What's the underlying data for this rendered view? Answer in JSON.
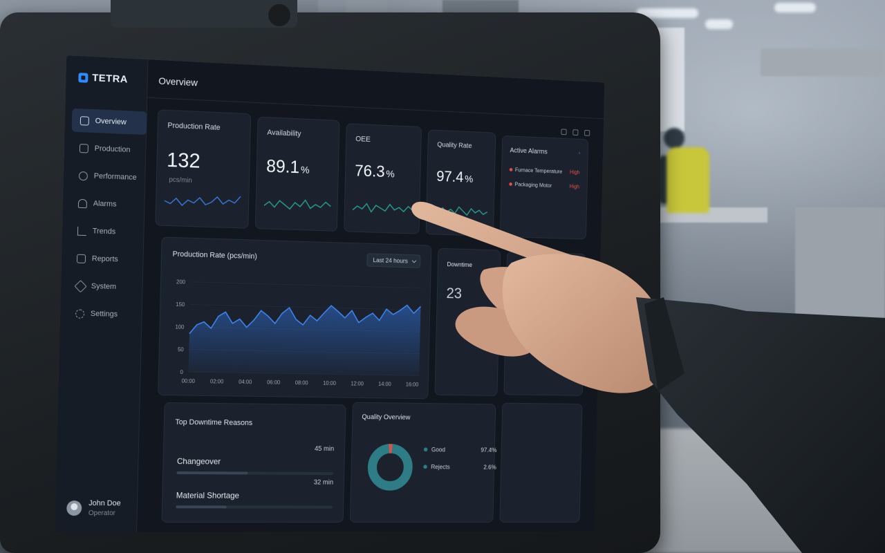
{
  "app": {
    "brand": "TETRA",
    "page_title": "Overview",
    "accent_color": "#2f8cff"
  },
  "sidebar": {
    "items": [
      {
        "label": "Overview",
        "icon": "dashboard-icon",
        "active": true
      },
      {
        "label": "Production",
        "icon": "factory-icon",
        "active": false
      },
      {
        "label": "Performance",
        "icon": "gauge-icon",
        "active": false
      },
      {
        "label": "Alarms",
        "icon": "bell-icon",
        "active": false
      },
      {
        "label": "Trends",
        "icon": "trend-icon",
        "active": false
      },
      {
        "label": "Reports",
        "icon": "report-icon",
        "active": false
      },
      {
        "label": "System",
        "icon": "cube-icon",
        "active": false
      },
      {
        "label": "Settings",
        "icon": "gear-icon",
        "active": false
      }
    ],
    "user": {
      "name": "John Doe",
      "role": "Operator"
    }
  },
  "kpis": [
    {
      "label": "Production Rate",
      "value": "132",
      "unit": "",
      "sub": "pcs/min"
    },
    {
      "label": "Availability",
      "value": "89.1",
      "unit": "%",
      "sub": ""
    },
    {
      "label": "OEE",
      "value": "76.3",
      "unit": "%",
      "sub": ""
    },
    {
      "label": "Quality Rate",
      "value": "97.4",
      "unit": "%",
      "sub": ""
    }
  ],
  "alarms": {
    "title": "Active Alarms",
    "items": [
      {
        "name": "Furnace Temperature",
        "severity": "High"
      },
      {
        "name": "Packaging Motor",
        "severity": "High"
      }
    ]
  },
  "production_chart": {
    "title": "Production Rate (pcs/min)",
    "range": "Last 24 hours"
  },
  "downtime": {
    "title": "Downtime",
    "value": "23"
  },
  "top_downtime": {
    "title": "Top Downtime Reasons",
    "items": [
      {
        "name": "Changeover",
        "time": "45 min",
        "share": 0.45
      },
      {
        "name": "Material Shortage",
        "time": "32 min",
        "share": 0.32
      }
    ]
  },
  "quality_overview": {
    "title": "Quality Overview",
    "items": [
      {
        "label": "Good",
        "pct": "97.4%",
        "color": "#2e7d86"
      },
      {
        "label": "Rejects",
        "pct": "2.6%",
        "color": "#e0504a"
      }
    ]
  },
  "chart_data": {
    "type": "area",
    "title": "Production Rate (pcs/min)",
    "x_ticks": [
      "00:00",
      "02:00",
      "04:00",
      "06:00",
      "08:00",
      "10:00",
      "12:00",
      "14:00",
      "16:00"
    ],
    "y_ticks": [
      0,
      50,
      100,
      150,
      200
    ],
    "ylim": [
      0,
      200
    ],
    "x": [
      0,
      0.5,
      1,
      1.5,
      2,
      2.5,
      3,
      3.5,
      4,
      4.5,
      5,
      5.5,
      6,
      6.5,
      7,
      7.5,
      8,
      8.5,
      9,
      9.5,
      10,
      10.5,
      11,
      11.5,
      12,
      12.5,
      13,
      13.5,
      14,
      14.5,
      15,
      15.5,
      16,
      16.5
    ],
    "values": [
      85,
      105,
      112,
      98,
      125,
      135,
      110,
      120,
      102,
      118,
      140,
      128,
      112,
      135,
      148,
      122,
      110,
      132,
      120,
      138,
      155,
      142,
      128,
      145,
      118,
      130,
      140,
      124,
      150,
      138,
      148,
      160,
      142,
      158
    ],
    "grid": true
  }
}
